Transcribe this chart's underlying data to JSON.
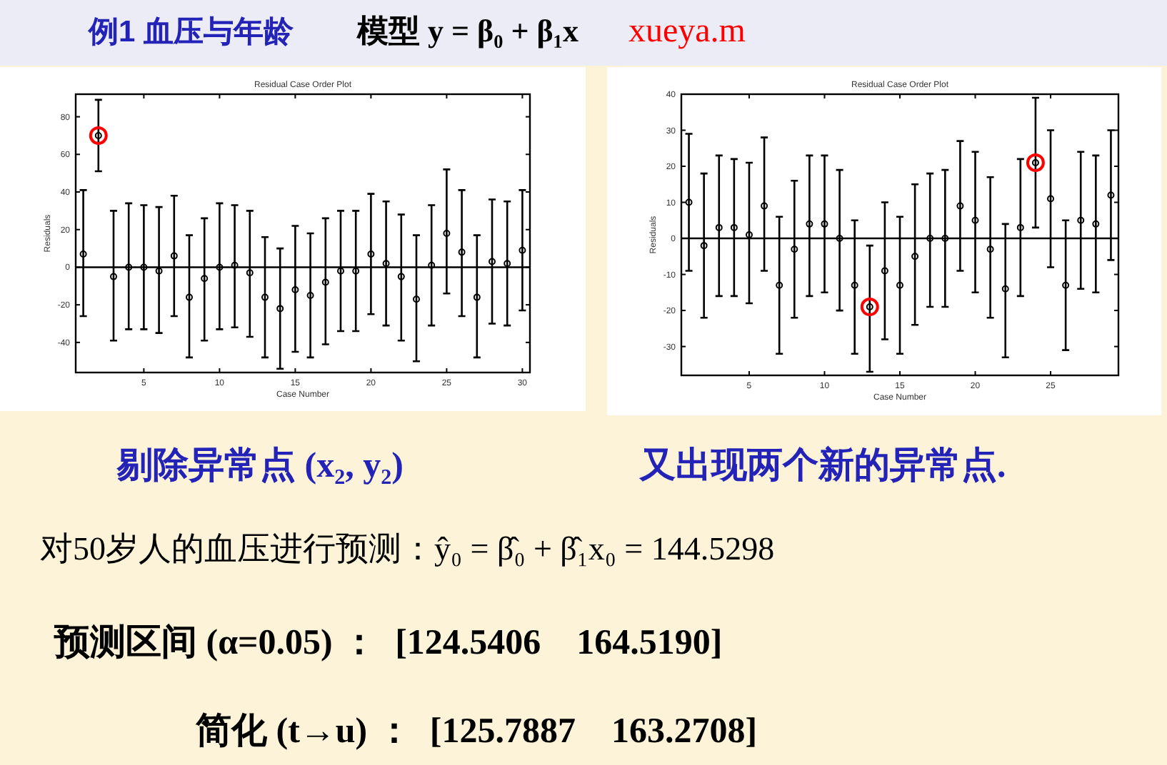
{
  "chart_data": [
    {
      "type": "scatter",
      "title": "Residual Case Order Plot",
      "xlabel": "Case Number",
      "ylabel": "Residuals",
      "xlim": [
        0.5,
        30.5
      ],
      "xticks": [
        5,
        10,
        15,
        20,
        25,
        30
      ],
      "ylim": [
        -56,
        92
      ],
      "yticks": [
        -40,
        -20,
        0,
        20,
        40,
        60,
        80
      ],
      "marker": "circle",
      "grid": false,
      "ref_lines": [
        {
          "axis": "y",
          "value": 0,
          "color": "#000000"
        }
      ],
      "series": [
        {
          "type": "scatter",
          "color": "#000000",
          "x": [
            1,
            2,
            3,
            4,
            5,
            6,
            7,
            8,
            9,
            10,
            11,
            12,
            13,
            14,
            15,
            16,
            17,
            18,
            19,
            20,
            21,
            22,
            23,
            24,
            25,
            26,
            27,
            28,
            29,
            30
          ],
          "values": [
            7,
            70,
            -5,
            0,
            0,
            -2,
            6,
            -16,
            -6,
            0,
            1,
            -3,
            -16,
            -22,
            -12,
            -15,
            -8,
            -2,
            -2,
            7,
            2,
            -5,
            -17,
            1,
            18,
            8,
            -16,
            3,
            2,
            9
          ],
          "errors": [
            [
              -26,
              41
            ],
            [
              51,
              89
            ],
            [
              -39,
              30
            ],
            [
              -33,
              34
            ],
            [
              -33,
              33
            ],
            [
              -35,
              32
            ],
            [
              -26,
              38
            ],
            [
              -48,
              17
            ],
            [
              -39,
              26
            ],
            [
              -33,
              34
            ],
            [
              -32,
              33
            ],
            [
              -37,
              30
            ],
            [
              -48,
              16
            ],
            [
              -54,
              10
            ],
            [
              -45,
              22
            ],
            [
              -48,
              18
            ],
            [
              -41,
              26
            ],
            [
              -34,
              30
            ],
            [
              -34,
              30
            ],
            [
              -25,
              39
            ],
            [
              -31,
              35
            ],
            [
              -39,
              28
            ],
            [
              -50,
              17
            ],
            [
              -31,
              33
            ],
            [
              -14,
              52
            ],
            [
              -26,
              41
            ],
            [
              -48,
              17
            ],
            [
              -30,
              36
            ],
            [
              -31,
              35
            ],
            [
              -23,
              41
            ]
          ]
        },
        {
          "type": "scatter",
          "color": "#ff0000",
          "x": [
            2
          ],
          "values": [
            70
          ]
        }
      ]
    },
    {
      "type": "scatter",
      "title": "Residual Case Order Plot",
      "xlabel": "Case Number",
      "ylabel": "Residuals",
      "xlim": [
        0.5,
        29.5
      ],
      "xticks": [
        5,
        10,
        15,
        20,
        25
      ],
      "ylim": [
        -38,
        40
      ],
      "yticks": [
        -30,
        -20,
        -10,
        0,
        10,
        20,
        30,
        40
      ],
      "marker": "circle",
      "grid": false,
      "ref_lines": [
        {
          "axis": "y",
          "value": 0,
          "color": "#000000"
        }
      ],
      "series": [
        {
          "type": "scatter",
          "color": "#000000",
          "x": [
            1,
            2,
            3,
            4,
            5,
            6,
            7,
            8,
            9,
            10,
            11,
            12,
            13,
            14,
            15,
            16,
            17,
            18,
            19,
            20,
            21,
            22,
            23,
            24,
            25,
            26,
            27,
            28,
            29
          ],
          "values": [
            10,
            -2,
            3,
            3,
            1,
            9,
            -13,
            -3,
            4,
            4,
            0,
            -13,
            -19,
            -9,
            -13,
            -5,
            0,
            0,
            9,
            5,
            -3,
            -14,
            3,
            21,
            11,
            -13,
            5,
            4,
            12
          ],
          "errors": [
            [
              -9,
              29
            ],
            [
              -22,
              18
            ],
            [
              -16,
              23
            ],
            [
              -16,
              22
            ],
            [
              -18,
              21
            ],
            [
              -9,
              28
            ],
            [
              -32,
              6
            ],
            [
              -22,
              16
            ],
            [
              -16,
              23
            ],
            [
              -15,
              23
            ],
            [
              -20,
              19
            ],
            [
              -32,
              5
            ],
            [
              -37,
              -2
            ],
            [
              -28,
              10
            ],
            [
              -32,
              6
            ],
            [
              -24,
              15
            ],
            [
              -19,
              18
            ],
            [
              -19,
              19
            ],
            [
              -9,
              27
            ],
            [
              -15,
              24
            ],
            [
              -22,
              17
            ],
            [
              -33,
              4
            ],
            [
              -16,
              22
            ],
            [
              3,
              39
            ],
            [
              -8,
              30
            ],
            [
              -31,
              5
            ],
            [
              -14,
              24
            ],
            [
              -15,
              23
            ],
            [
              -6,
              30
            ]
          ]
        },
        {
          "type": "scatter",
          "color": "#ff0000",
          "x": [
            13,
            24
          ],
          "values": [
            -19,
            21
          ]
        }
      ]
    },
    {
      "type": "other",
      "title": "例1  血压与年龄",
      "annotations": [
        "模型 y = β₀ + β₁x",
        "xueya.m",
        "剔除异常点 (x₂, y₂)",
        "又出现两个新的异常点.",
        "对50岁人的血压进行预测：ŷ₀ = β̂₀ + β̂₁x₀ = 144.5298",
        "预测区间 (α=0.05) ：  [124.5406    164.5190]",
        "简化 (t→u) ：  [125.7887    163.2708]"
      ]
    }
  ]
}
